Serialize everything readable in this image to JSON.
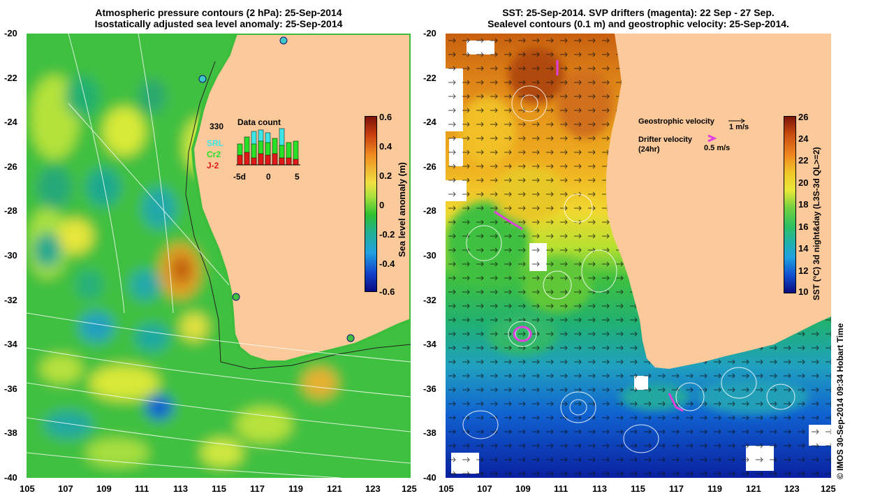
{
  "left_panel": {
    "title_line1": "Atmospheric pressure contours (2 hPa): 25-Sep-2014",
    "title_line2": "Isostatically adjusted sea level anomaly: 25-Sep-2014",
    "lat_ticks": [
      "-20",
      "-22",
      "-24",
      "-26",
      "-28",
      "-30",
      "-32",
      "-34",
      "-36",
      "-38",
      "-40"
    ],
    "lon_ticks": [
      "105",
      "107",
      "109",
      "111",
      "113",
      "115",
      "117",
      "119",
      "121",
      "123",
      "125"
    ],
    "colorbar": {
      "label": "Sea level anomaly (m)",
      "ticks": [
        "0.6",
        "0.4",
        "0.2",
        "0",
        "-0.2",
        "-0.4",
        "-0.6"
      ],
      "range": [
        -0.6,
        0.6
      ]
    },
    "inset": {
      "title": "Data count",
      "count": "330",
      "legend": [
        "SRL",
        "Cr2",
        "J-2"
      ],
      "legend_colors": [
        "#3fe6e6",
        "#28e028",
        "#e01818"
      ],
      "x_ticks": [
        "-5d",
        "0",
        "5"
      ]
    }
  },
  "right_panel": {
    "title_line1": "SST: 25-Sep-2014. SVP drifters (magenta): 22 Sep - 27 Sep.",
    "title_line2": "Sealevel contours (0.1 m) and geostrophic velocity: 25-Sep-2014.",
    "lat_ticks": [
      "-20",
      "-22",
      "-24",
      "-26",
      "-28",
      "-30",
      "-32",
      "-34",
      "-36",
      "-38",
      "-40"
    ],
    "lon_ticks": [
      "105",
      "107",
      "109",
      "111",
      "113",
      "115",
      "117",
      "119",
      "121",
      "123",
      "125"
    ],
    "colorbar": {
      "label": "SST (°C) 3d night&day (L3S-3d QL>=2)",
      "ticks": [
        "26",
        "24",
        "22",
        "20",
        "18",
        "16",
        "14",
        "12",
        "10"
      ],
      "range": [
        10,
        26
      ]
    },
    "legend": {
      "geo_label": "Geostrophic velocity",
      "geo_scale": "1 m/s",
      "drifter_label": "Drifter velocity",
      "drifter_sub": "(24hr)",
      "drifter_scale": "0.5 m/s"
    }
  },
  "credit": "© IMOS 30-Sep-2014 09:34 Hobart Time",
  "colors": {
    "land": "#fbc99a",
    "drifter": "#e040e0"
  }
}
